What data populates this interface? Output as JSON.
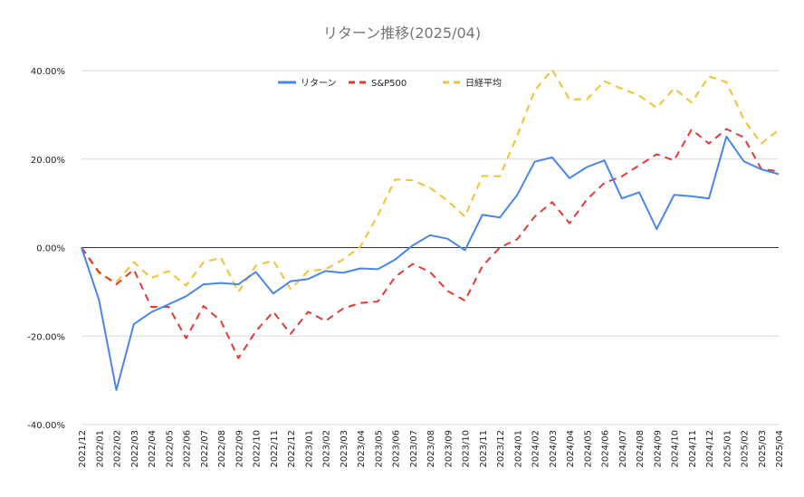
{
  "chart_data": {
    "type": "line",
    "title": "リターン推移(2025/04)",
    "xlabel": "",
    "ylabel": "",
    "ylim": [
      -40,
      40
    ],
    "y_ticks": [
      "40.00%",
      "20.00%",
      "0.00%",
      "-20.00%",
      "-40.00%"
    ],
    "y_tick_values": [
      40,
      20,
      0,
      -20,
      -40
    ],
    "grid": true,
    "legend_position": "top",
    "categories": [
      "2021/12",
      "2022/01",
      "2022/02",
      "2022/03",
      "2022/04",
      "2022/05",
      "2022/06",
      "2022/07",
      "2022/08",
      "2022/09",
      "2022/10",
      "2022/11",
      "2022/12",
      "2023/01",
      "2023/02",
      "2023/03",
      "2023/04",
      "2023/05",
      "2023/06",
      "2023/07",
      "2023/08",
      "2023/09",
      "2023/10",
      "2023/11",
      "2023/12",
      "2024/01",
      "2024/02",
      "2024/03",
      "2024/04",
      "2024/05",
      "2024/06",
      "2024/07",
      "2024/08",
      "2024/09",
      "2024/10",
      "2024/11",
      "2024/12",
      "2025/01",
      "2025/02",
      "2025/03",
      "2025/04"
    ],
    "series": [
      {
        "name": "リターン",
        "color": "#4a86e8",
        "dash": "solid",
        "values": [
          0,
          -11.8,
          -32.2,
          -17.3,
          -14.6,
          -12.8,
          -11,
          -8.3,
          -8,
          -8.3,
          -5.5,
          -10.4,
          -7.6,
          -7.1,
          -5.3,
          -5.7,
          -4.7,
          -4.9,
          -2.7,
          0.5,
          2.8,
          2,
          -0.6,
          7.4,
          6.8,
          11.9,
          19.4,
          20.4,
          15.7,
          18.2,
          19.7,
          11.1,
          12.5,
          4.2,
          11.9,
          11.6,
          11.1,
          25.1,
          19.5,
          17.7,
          16.6
        ]
      },
      {
        "name": "S&P500",
        "color": "#e53935",
        "dash": "dashed",
        "values": [
          0,
          -5.5,
          -8.3,
          -5,
          -13.4,
          -13.4,
          -20.5,
          -13.2,
          -16.6,
          -25,
          -18.9,
          -14.5,
          -19.5,
          -14.5,
          -16.6,
          -13.8,
          -12.5,
          -12.2,
          -6.6,
          -3.7,
          -5.5,
          -9.8,
          -12,
          -4.2,
          0,
          1.9,
          7,
          10.3,
          5.5,
          10.9,
          14.6,
          16.1,
          18.6,
          21.1,
          19.7,
          26.7,
          23.5,
          26.8,
          24.9,
          17.8,
          17.2
        ]
      },
      {
        "name": "日経平均",
        "color": "#f1c232",
        "dash": "dashed",
        "values": [
          0,
          -5.9,
          -7.8,
          -3.3,
          -6.9,
          -5.3,
          -8.6,
          -3.3,
          -2.3,
          -10,
          -4.1,
          -2.9,
          -9.4,
          -5.3,
          -4.9,
          -2.7,
          0.2,
          7.3,
          15.4,
          15.2,
          13.5,
          10.6,
          7,
          16.2,
          16.1,
          25.3,
          35.5,
          40.2,
          33.5,
          33.5,
          37.6,
          35.9,
          34.4,
          31.6,
          36,
          32.8,
          38.7,
          37.4,
          29,
          23.5,
          26.6
        ]
      }
    ]
  }
}
